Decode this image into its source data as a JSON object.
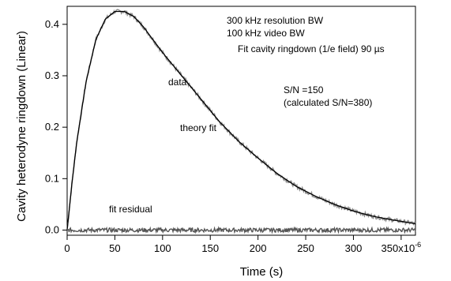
{
  "chart_data": {
    "type": "line",
    "xlabel": "Time (s)",
    "ylabel": "Cavity heterodyne ringdown (Linear)",
    "xlim": [
      0,
      0.000365
    ],
    "ylim": [
      -0.01,
      0.435
    ],
    "x_ticks": [
      {
        "value": 0,
        "label": "0"
      },
      {
        "value": 5e-05,
        "label": "50"
      },
      {
        "value": 0.0001,
        "label": "100"
      },
      {
        "value": 0.00015,
        "label": "150"
      },
      {
        "value": 0.0002,
        "label": "200"
      },
      {
        "value": 0.00025,
        "label": "250"
      },
      {
        "value": 0.0003,
        "label": "300"
      },
      {
        "value": 0.00035,
        "label": "350x10"
      }
    ],
    "x_exponent": "-6",
    "y_ticks": [
      {
        "value": 0.0,
        "label": "0.0"
      },
      {
        "value": 0.1,
        "label": "0.1"
      },
      {
        "value": 0.2,
        "label": "0.2"
      },
      {
        "value": 0.3,
        "label": "0.3"
      },
      {
        "value": 0.4,
        "label": "0.4"
      }
    ],
    "series": [
      {
        "name": "data",
        "color": "#8a8a8a",
        "noisy": true,
        "x": [
          0,
          5e-06,
          1e-05,
          2e-05,
          3e-05,
          4e-05,
          5e-05,
          6e-05,
          7e-05,
          8e-05,
          9e-05,
          0.0001,
          0.00012,
          0.00014,
          0.00016,
          0.00018,
          0.0002,
          0.00022,
          0.00024,
          0.00026,
          0.00028,
          0.0003,
          0.00032,
          0.00034,
          0.00036,
          0.000365
        ],
        "y": [
          0.0,
          0.09,
          0.17,
          0.29,
          0.37,
          0.41,
          0.425,
          0.425,
          0.415,
          0.395,
          0.37,
          0.345,
          0.3,
          0.255,
          0.21,
          0.172,
          0.14,
          0.11,
          0.085,
          0.066,
          0.05,
          0.037,
          0.027,
          0.02,
          0.014,
          0.012
        ]
      },
      {
        "name": "theory fit",
        "color": "#000000",
        "noisy": false,
        "x": [
          0,
          5e-06,
          1e-05,
          2e-05,
          3e-05,
          4e-05,
          5e-05,
          6e-05,
          7e-05,
          8e-05,
          9e-05,
          0.0001,
          0.00012,
          0.00014,
          0.00016,
          0.00018,
          0.0002,
          0.00022,
          0.00024,
          0.00026,
          0.00028,
          0.0003,
          0.00032,
          0.00034,
          0.00036,
          0.000365
        ],
        "y": [
          0.0,
          0.09,
          0.17,
          0.29,
          0.37,
          0.41,
          0.425,
          0.425,
          0.415,
          0.395,
          0.37,
          0.345,
          0.3,
          0.255,
          0.21,
          0.172,
          0.14,
          0.11,
          0.085,
          0.066,
          0.05,
          0.037,
          0.027,
          0.02,
          0.014,
          0.012
        ]
      },
      {
        "name": "fit residual",
        "color": "#555555",
        "noisy": true,
        "x": [
          0,
          0.000365
        ],
        "y": [
          0.0,
          0.0
        ]
      }
    ],
    "annotations": {
      "info_line1": "300 kHz resolution BW",
      "info_line2": "100 kHz video BW",
      "info_line3": "Fit cavity ringdown (1/e field) 90 µs",
      "data_label": "data",
      "snr": "S/N =150",
      "snr_calc": "(calculated S/N=380)",
      "fit_label": "theory fit",
      "residual_label": "fit residual"
    }
  }
}
